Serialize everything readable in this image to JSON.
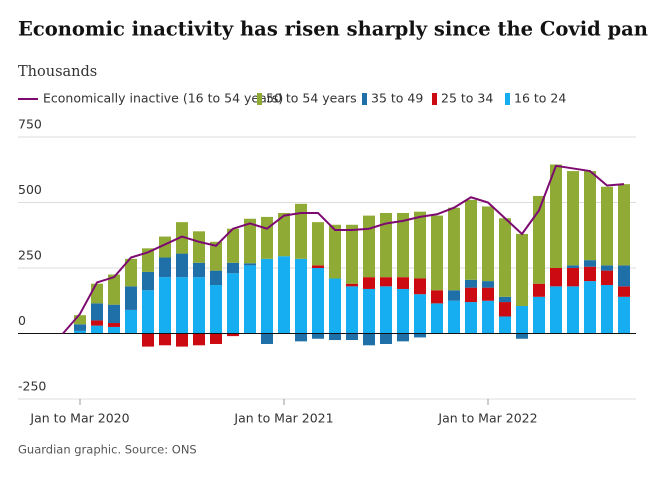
{
  "chart_data": {
    "type": "bar",
    "title": "Economic inactivity has risen sharply since the Covid pandemic",
    "subtitle": "Thousands",
    "source": "Guardian graphic. Source: ONS",
    "categories": [
      null,
      "Jan to Mar 2020",
      null,
      null,
      null,
      null,
      null,
      null,
      null,
      null,
      null,
      null,
      null,
      "Jan to Mar 2021",
      null,
      null,
      null,
      null,
      null,
      null,
      null,
      null,
      null,
      null,
      null,
      "Jan to Mar 2022",
      null,
      null,
      null,
      null,
      null,
      null,
      null,
      null
    ],
    "ylim": [
      -250,
      750
    ],
    "yticks": [
      -250,
      0,
      250,
      500,
      750
    ],
    "grid": true,
    "series": [
      {
        "name": "Economically inactive (16 to 54 years)",
        "type": "line",
        "color": "#7d0a70",
        "values": [
          0,
          75,
          195,
          215,
          290,
          310,
          340,
          370,
          350,
          335,
          400,
          420,
          400,
          450,
          460,
          460,
          395,
          395,
          400,
          420,
          430,
          445,
          455,
          480,
          520,
          500,
          440,
          380,
          470,
          640,
          630,
          620,
          565,
          570
        ]
      },
      {
        "name": "50 to 54 years",
        "color": "#8fab36",
        "values": [
          null,
          35,
          75,
          115,
          105,
          90,
          80,
          120,
          120,
          110,
          130,
          170,
          160,
          165,
          210,
          165,
          205,
          225,
          235,
          245,
          245,
          255,
          285,
          315,
          305,
          285,
          300,
          275,
          335,
          395,
          360,
          340,
          300,
          310
        ]
      },
      {
        "name": "35 to 49",
        "color": "#1f6fa8",
        "values": [
          null,
          25,
          65,
          70,
          90,
          70,
          75,
          90,
          55,
          55,
          40,
          8,
          -40,
          0,
          -30,
          -20,
          -25,
          -25,
          -45,
          -40,
          -30,
          -15,
          0,
          40,
          30,
          25,
          20,
          -20,
          0,
          0,
          10,
          25,
          20,
          80
        ]
      },
      {
        "name": "25 to 34",
        "color": "#cc0a11",
        "values": [
          null,
          0,
          20,
          15,
          0,
          -50,
          -45,
          -50,
          -45,
          -40,
          -10,
          0,
          0,
          0,
          0,
          10,
          0,
          10,
          45,
          35,
          45,
          60,
          50,
          0,
          55,
          50,
          55,
          0,
          50,
          70,
          70,
          55,
          55,
          40
        ]
      },
      {
        "name": "16 to 24",
        "color": "#16aef0",
        "values": [
          null,
          10,
          30,
          25,
          90,
          165,
          215,
          215,
          215,
          185,
          230,
          260,
          285,
          295,
          285,
          250,
          210,
          180,
          170,
          180,
          170,
          150,
          115,
          125,
          120,
          125,
          65,
          105,
          140,
          180,
          180,
          200,
          185,
          140
        ]
      }
    ]
  }
}
